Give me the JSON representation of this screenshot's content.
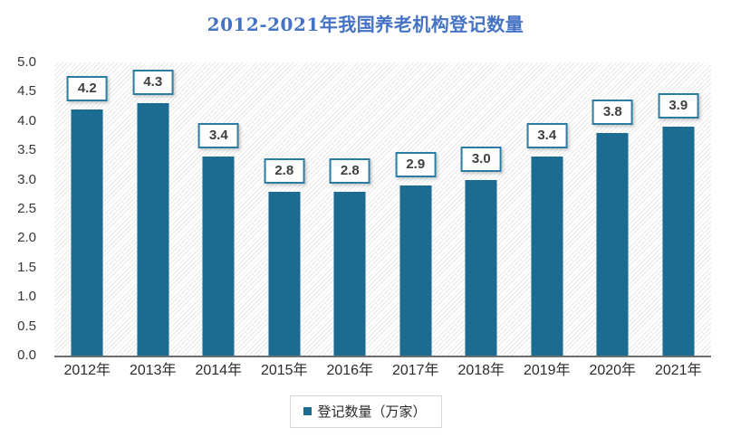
{
  "chart_data": {
    "type": "bar",
    "title": "2012-2021年我国养老机构登记数量",
    "categories": [
      "2012年",
      "2013年",
      "2014年",
      "2015年",
      "2016年",
      "2017年",
      "2018年",
      "2019年",
      "2020年",
      "2021年"
    ],
    "values": [
      4.2,
      4.3,
      3.4,
      2.8,
      2.8,
      2.9,
      3.0,
      3.4,
      3.8,
      3.9
    ],
    "data_labels": [
      "4.2",
      "4.3",
      "3.4",
      "2.8",
      "2.8",
      "2.9",
      "3.0",
      "3.4",
      "3.8",
      "3.9"
    ],
    "legend_label": "登记数量（万家）",
    "legend_position": "bottom",
    "xlabel": "",
    "ylabel": "",
    "ylim": [
      0.0,
      5.0
    ],
    "ytick_step": 0.5,
    "yticks": [
      "5.0",
      "4.5",
      "4.0",
      "3.5",
      "3.0",
      "2.5",
      "2.0",
      "1.5",
      "1.0",
      "0.5",
      "0.0"
    ],
    "grid": false,
    "colors": {
      "title": "#4472c4",
      "bar": "#1c6c92",
      "label_box_border": "#2b7ca3",
      "label_text": "#3f3f3f",
      "axis_line": "#6e6e6e",
      "tick_text": "#363636",
      "legend_border": "#d7d7d7",
      "plot_hatch_line": "#e7e7e7",
      "background": "#ffffff"
    }
  }
}
